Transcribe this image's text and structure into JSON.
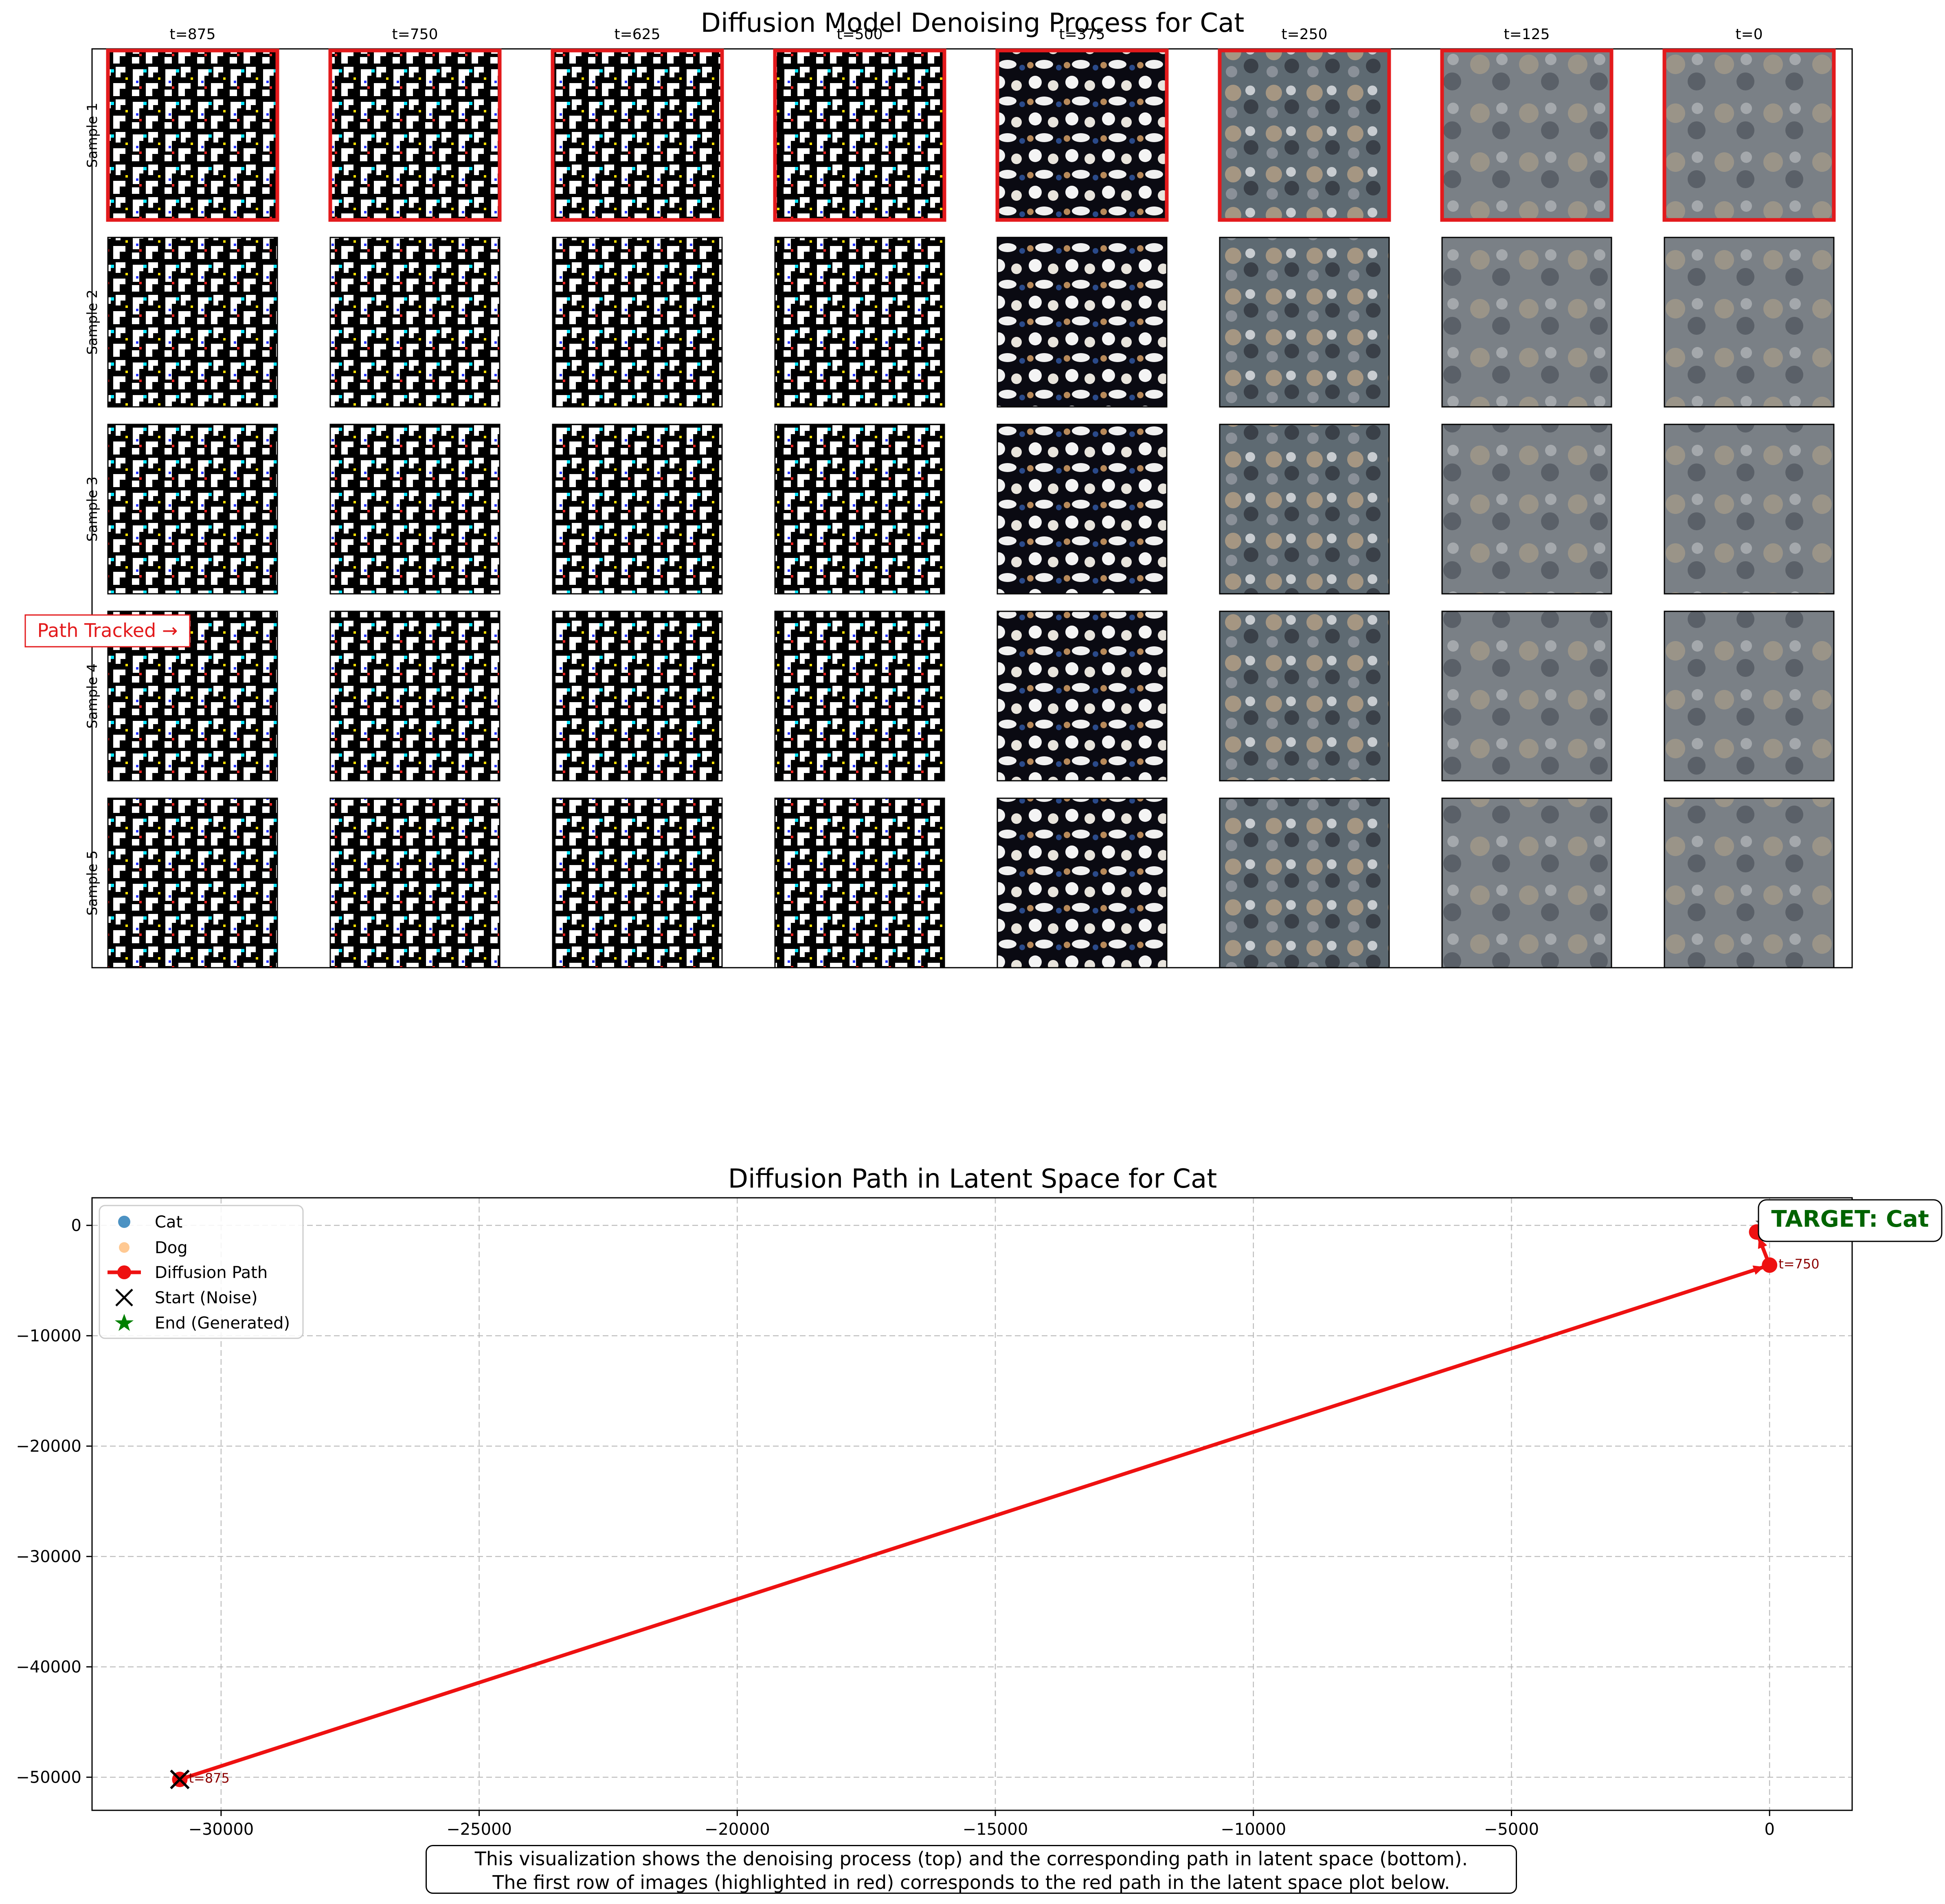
{
  "chart_data": [
    {
      "type": "image_grid",
      "title": "Diffusion Model Denoising Process for Cat",
      "columns": [
        "t=875",
        "t=750",
        "t=625",
        "t=500",
        "t=375",
        "t=250",
        "t=125",
        "t=0"
      ],
      "rows": [
        "Sample 1",
        "Sample 2",
        "Sample 3",
        "Sample 4",
        "Sample 5"
      ],
      "highlighted_row": "Sample 1",
      "highlight_color": "#e31a1c",
      "annotation": "Path Tracked →"
    },
    {
      "type": "scatter",
      "title": "Diffusion Path in Latent Space for Cat",
      "xlim": [
        -32500,
        1600
      ],
      "ylim": [
        -53000,
        2500
      ],
      "xticks": [
        -30000,
        -25000,
        -20000,
        -15000,
        -10000,
        -5000,
        0
      ],
      "yticks": [
        0,
        -10000,
        -20000,
        -30000,
        -40000,
        -50000
      ],
      "xtick_labels": [
        "−30000",
        "−25000",
        "−20000",
        "−15000",
        "−10000",
        "−5000",
        "0"
      ],
      "ytick_labels": [
        "0",
        "−10000",
        "−20000",
        "−30000",
        "−40000",
        "−50000"
      ],
      "grid": true,
      "legend_position": "upper-left",
      "legend": [
        "Cat",
        "Dog",
        "Diffusion Path",
        "Start (Noise)",
        "End (Generated)"
      ],
      "series": [
        {
          "name": "Diffusion Path",
          "color": "#ee1111",
          "x": [
            -30800,
            0,
            -250,
            0
          ],
          "y": [
            -50200,
            -3600,
            -600,
            0
          ]
        }
      ],
      "start": {
        "x": -30800,
        "y": -50200
      },
      "end": {
        "x": 0,
        "y": 0
      },
      "point_labels": [
        "t=875",
        "t=750"
      ],
      "target_label": "TARGET: Cat",
      "target_color": "#006400"
    }
  ],
  "caption": {
    "line1": "This visualization shows the denoising process (top) and the corresponding path in latent space (bottom).",
    "line2": "The first row of images (highlighted in red) corresponds to the red path in the latent space plot below."
  },
  "colors": {
    "path": "#ee1111",
    "cat": "#1f77b4",
    "dog": "#ffbb78",
    "end": "#008000",
    "grid": "#b0b0b0"
  }
}
